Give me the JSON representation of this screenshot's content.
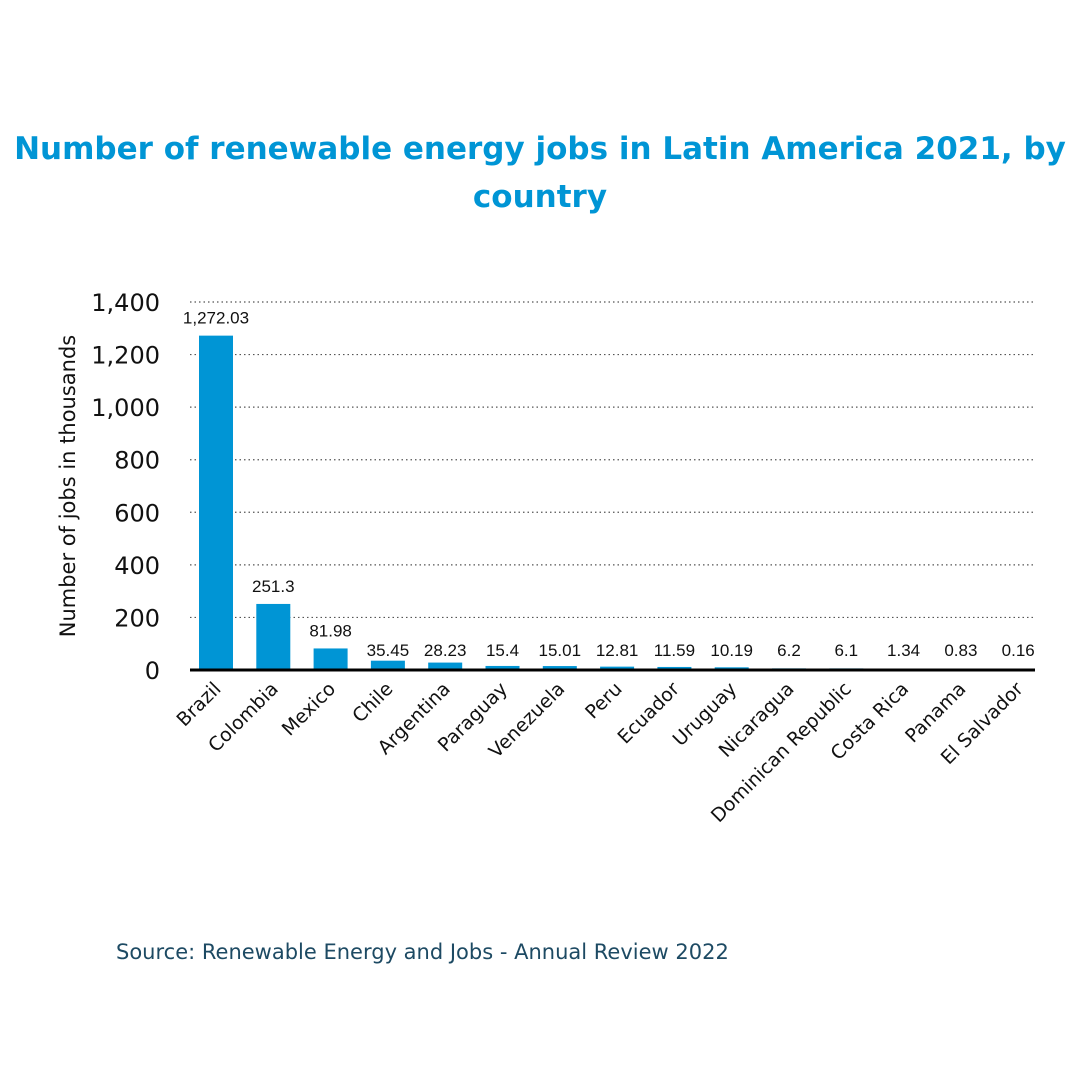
{
  "chart_data": {
    "type": "bar",
    "title": "Number of renewable energy jobs in Latin America 2021, by country",
    "ylabel": "Number of jobs in thousands",
    "xlabel": "",
    "ylim": [
      0,
      1400
    ],
    "yticks": [
      "0",
      "200",
      "400",
      "600",
      "800",
      "1,000",
      "1,200",
      "1,400"
    ],
    "grid": "horizontal dotted",
    "color": "#0095d5",
    "categories": [
      "Brazil",
      "Colombia",
      "Mexico",
      "Chile",
      "Argentina",
      "Paraguay",
      "Venezuela",
      "Peru",
      "Ecuador",
      "Uruguay",
      "Nicaragua",
      "Dominican Republic",
      "Costa Rica",
      "Panama",
      "El Salvador"
    ],
    "values": [
      1272.03,
      251.3,
      81.98,
      35.45,
      28.23,
      15.4,
      15.01,
      12.81,
      11.59,
      10.19,
      6.2,
      6.1,
      1.34,
      0.83,
      0.16
    ],
    "data_labels": [
      "1,272.03",
      "251.3",
      "81.98",
      "35.45",
      "28.23",
      "15.4",
      "15.01",
      "12.81",
      "11.59",
      "10.19",
      "6.2",
      "6.1",
      "1.34",
      "0.83",
      "0.16"
    ]
  },
  "source": "Source: Renewable Energy and Jobs - Annual Review 2022"
}
